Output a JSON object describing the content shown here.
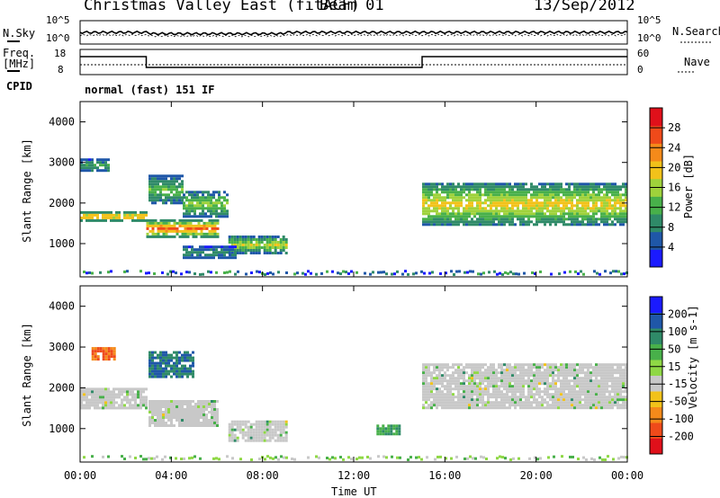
{
  "header": {
    "title": "Christmas Valley East (fitACF)",
    "beam": "Beam 01",
    "date": "13/Sep/2012"
  },
  "noise_panel": {
    "left_label": "N.Sky",
    "left_ticks": [
      "10^5",
      "10^0"
    ],
    "right_ticks": [
      "10^5",
      "10^0"
    ],
    "right_label": "N.Search"
  },
  "freq_panel": {
    "left_label_line1": "Freq.",
    "left_label_line2": "[MHz]",
    "left_ticks": [
      "18",
      "8"
    ],
    "right_ticks": [
      "60",
      "0"
    ],
    "right_label": "Nave"
  },
  "cpid": {
    "label": "CPID",
    "value": "normal (fast) 151 IF"
  },
  "colors": {
    "power_scale": [
      "#1a1aff",
      "#1f57a8",
      "#2f8a68",
      "#48b04a",
      "#9fd23b",
      "#f2c21a",
      "#f58a1a",
      "#ef4a1a",
      "#e0101a"
    ],
    "velocity_scale": [
      "#1a1aff",
      "#1f57a8",
      "#2f8a68",
      "#48b04a",
      "#8fd845",
      "#c8c8c8",
      "#f2c21a",
      "#f58a1a",
      "#ef4a1a",
      "#e0101a"
    ]
  },
  "chart_data": [
    {
      "type": "heatmap",
      "name": "power",
      "ylabel": "Slant Range [km]",
      "yticks": [
        1000,
        2000,
        3000,
        4000
      ],
      "ylim": [
        180,
        4500
      ],
      "colorbar_label": "Power [dB]",
      "colorbar_ticks": [
        "4",
        "8",
        "12",
        "16",
        "20",
        "24",
        "28"
      ],
      "bands": [
        {
          "t0": 0.0,
          "t1": 2.9,
          "range": [
            1600,
            1800
          ],
          "value": 22
        },
        {
          "t0": 2.9,
          "t1": 6.0,
          "range": [
            1200,
            1600
          ],
          "value": 24
        },
        {
          "t0": 0.0,
          "t1": 1.2,
          "range": [
            2800,
            3100
          ],
          "value": 10
        },
        {
          "t0": 3.0,
          "t1": 4.5,
          "range": [
            2000,
            2700
          ],
          "value": 12
        },
        {
          "t0": 4.5,
          "t1": 6.5,
          "range": [
            1700,
            2300
          ],
          "value": 14
        },
        {
          "t0": 6.5,
          "t1": 9.0,
          "range": [
            800,
            1200
          ],
          "value": 16
        },
        {
          "t0": 4.5,
          "t1": 6.8,
          "range": [
            650,
            950
          ],
          "value": 8
        },
        {
          "t0": 15.0,
          "t1": 24.0,
          "range": [
            1500,
            2500
          ],
          "value": 18
        }
      ]
    },
    {
      "type": "heatmap",
      "name": "velocity",
      "xlabel": "Time UT",
      "ylabel": "Slant Range [km]",
      "yticks": [
        1000,
        2000,
        3000,
        4000
      ],
      "xticks": [
        "00:00",
        "04:00",
        "08:00",
        "12:00",
        "16:00",
        "20:00",
        "00:00"
      ],
      "xlim": [
        0,
        24
      ],
      "ylim": [
        180,
        4500
      ],
      "colorbar_label": "Velocity [m s-1]",
      "colorbar_ticks": [
        "200",
        "100",
        "50",
        "15",
        "-15",
        "-50",
        "-100",
        "-200"
      ],
      "bands": [
        {
          "t0": 0.0,
          "t1": 2.9,
          "range": [
            1500,
            2000
          ],
          "value": 0
        },
        {
          "t0": 3.0,
          "t1": 6.0,
          "range": [
            1100,
            1700
          ],
          "value": 0
        },
        {
          "t0": 6.5,
          "t1": 9.0,
          "range": [
            700,
            1200
          ],
          "value": 0
        },
        {
          "t0": 15.0,
          "t1": 24.0,
          "range": [
            1500,
            2600
          ],
          "value": 0
        },
        {
          "t0": 0.5,
          "t1": 1.5,
          "range": [
            2700,
            3000
          ],
          "value": -200
        },
        {
          "t0": 3.0,
          "t1": 5.0,
          "range": [
            2300,
            2900
          ],
          "value": 100
        },
        {
          "t0": 13.0,
          "t1": 14.0,
          "range": [
            900,
            1100
          ],
          "value": 50
        }
      ]
    },
    {
      "type": "line",
      "name": "frequency",
      "x": [
        0,
        2.9,
        2.9,
        15.0,
        15.0,
        24
      ],
      "y": [
        16,
        16,
        10,
        10,
        16,
        16
      ]
    }
  ]
}
